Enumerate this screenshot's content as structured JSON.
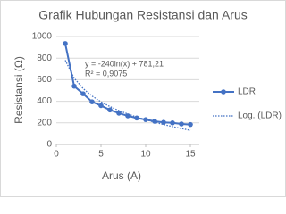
{
  "chart_data": {
    "type": "line",
    "title": "Grafik Hubungan Resistansi dan Arus",
    "x_label": "Arus (A)",
    "y_label": "Resistansi (Ω)",
    "x": [
      1,
      2,
      3,
      4,
      5,
      6,
      7,
      8,
      9,
      10,
      11,
      12,
      13,
      14,
      15
    ],
    "series": [
      {
        "name": "LDR",
        "color": "#4472c4",
        "line_style": "solid",
        "marker": true,
        "values": [
          935,
          540,
          470,
          395,
          360,
          320,
          290,
          265,
          245,
          230,
          215,
          205,
          200,
          190,
          185
        ]
      },
      {
        "name": "Log. (LDR)",
        "color": "#4472c4",
        "line_style": "dotted",
        "marker": false,
        "values": [
          781,
          615,
          518,
          449,
          395,
          351,
          314,
          282,
          254,
          229,
          206,
          185,
          166,
          148,
          131
        ]
      }
    ],
    "annotations": [
      "y = -240ln(x) + 781,21",
      "R² = 0,9075"
    ],
    "xlim": [
      0,
      16
    ],
    "xticks": [
      0,
      5,
      10,
      15
    ],
    "ylim": [
      0,
      1000
    ],
    "yticks": [
      0,
      200,
      400,
      600,
      800,
      1000
    ],
    "grid": true,
    "legend": "right"
  }
}
